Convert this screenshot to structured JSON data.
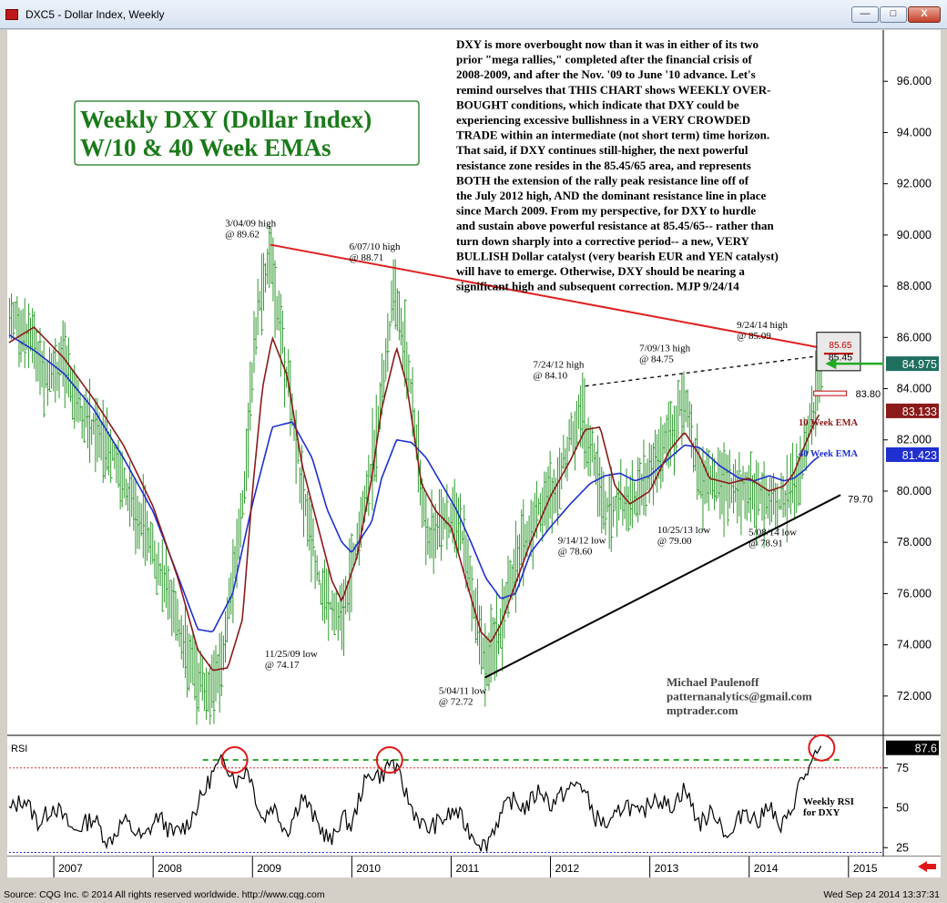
{
  "window": {
    "title": "DXC5 - Dollar Index, Weekly",
    "min_label": "—",
    "max_label": "□",
    "close_label": "X"
  },
  "status": {
    "left": "Source: CQG Inc. © 2014 All rights reserved worldwide. http://www.cqg.com",
    "right": "Wed Sep 24 2014 13:37:31"
  },
  "colors": {
    "bars": "#2f9a2f",
    "ema10": "#8b1a1a",
    "ema40": "#1f2fd0",
    "resistance_line": "#e02020",
    "support_line": "#000000",
    "rsi_line": "#000000",
    "rsi_overbought_line": "#33aa33",
    "title_box_text": "#1a7a1a"
  },
  "chart_data": [
    {
      "type": "bar",
      "title": "Weekly DXY (Dollar Index) W/10 & 40 Week EMAs",
      "title_lines": [
        "Weekly DXY (Dollar Index)",
        "W/10 & 40 Week EMAs"
      ],
      "ylim": [
        70.5,
        98.0
      ],
      "y_ticks": [
        "96.000",
        "94.000",
        "92.000",
        "90.000",
        "88.000",
        "86.000",
        "84.000",
        "82.000",
        "80.000",
        "78.000",
        "76.000",
        "74.000",
        "72.000"
      ],
      "xlim": [
        2006.55,
        2015.35
      ],
      "x_ticks": [
        "2007",
        "2008",
        "2009",
        "2010",
        "2011",
        "2012",
        "2013",
        "2014",
        "2015"
      ],
      "price_anchors": {
        "x": [
          2006.55,
          2006.75,
          2006.9,
          2007.1,
          2007.3,
          2007.6,
          2007.9,
          2008.2,
          2008.35,
          2008.55,
          2008.7,
          2008.9,
          2009.05,
          2009.18,
          2009.35,
          2009.5,
          2009.7,
          2009.9,
          2010.0,
          2010.2,
          2010.43,
          2010.6,
          2010.75,
          2010.9,
          2011.1,
          2011.34,
          2011.5,
          2011.6,
          2011.75,
          2011.9,
          2012.05,
          2012.3,
          2012.56,
          2012.7,
          2012.95,
          2013.15,
          2013.35,
          2013.53,
          2013.65,
          2013.82,
          2014.0,
          2014.1,
          2014.2,
          2014.35,
          2014.5,
          2014.65,
          2014.73
        ],
        "y": [
          86.8,
          86.2,
          84.6,
          85.0,
          83.0,
          81.4,
          78.6,
          75.6,
          73.5,
          72.1,
          73.4,
          79.5,
          87.0,
          89.2,
          84.5,
          80.0,
          76.0,
          74.8,
          77.0,
          81.0,
          87.8,
          84.0,
          78.0,
          79.0,
          78.5,
          73.2,
          74.5,
          76.8,
          78.0,
          79.5,
          80.0,
          83.2,
          79.2,
          79.5,
          80.2,
          81.8,
          83.4,
          80.2,
          80.4,
          80.1,
          80.0,
          79.8,
          79.7,
          79.5,
          80.6,
          83.3,
          84.8
        ]
      },
      "ema10": {
        "x": [
          2006.55,
          2006.8,
          2007.1,
          2007.4,
          2007.7,
          2008.0,
          2008.25,
          2008.45,
          2008.6,
          2008.75,
          2008.9,
          2009.0,
          2009.1,
          2009.2,
          2009.35,
          2009.5,
          2009.7,
          2009.8,
          2009.9,
          2010.05,
          2010.2,
          2010.3,
          2010.45,
          2010.55,
          2010.7,
          2010.85,
          2011.0,
          2011.15,
          2011.3,
          2011.4,
          2011.5,
          2011.65,
          2011.8,
          2012.0,
          2012.2,
          2012.35,
          2012.5,
          2012.65,
          2012.8,
          2013.0,
          2013.2,
          2013.35,
          2013.5,
          2013.6,
          2013.8,
          2014.0,
          2014.2,
          2014.35,
          2014.45,
          2014.55,
          2014.65,
          2014.72
        ],
        "y": [
          85.8,
          86.4,
          85.2,
          83.6,
          81.8,
          79.4,
          76.6,
          73.8,
          73.0,
          73.1,
          75.0,
          80.0,
          84.0,
          86.0,
          84.5,
          81.0,
          78.0,
          76.5,
          75.7,
          77.4,
          80.5,
          83.2,
          85.6,
          84.2,
          80.3,
          79.2,
          78.6,
          76.5,
          74.5,
          74.1,
          74.8,
          76.4,
          78.0,
          79.8,
          81.2,
          82.4,
          82.5,
          80.2,
          79.5,
          80.0,
          81.6,
          82.3,
          81.4,
          80.5,
          80.3,
          80.5,
          80.0,
          80.2,
          80.7,
          81.7,
          82.6,
          83.1
        ]
      },
      "ema40": {
        "x": [
          2006.55,
          2006.8,
          2007.1,
          2007.4,
          2007.7,
          2008.0,
          2008.2,
          2008.45,
          2008.6,
          2008.8,
          2009.0,
          2009.2,
          2009.4,
          2009.6,
          2009.75,
          2009.9,
          2010.0,
          2010.2,
          2010.3,
          2010.45,
          2010.6,
          2010.75,
          2010.9,
          2011.05,
          2011.2,
          2011.35,
          2011.5,
          2011.65,
          2011.8,
          2012.0,
          2012.2,
          2012.4,
          2012.55,
          2012.7,
          2012.85,
          2013.0,
          2013.2,
          2013.35,
          2013.5,
          2013.7,
          2013.9,
          2014.05,
          2014.2,
          2014.35,
          2014.45,
          2014.55,
          2014.65,
          2014.72
        ],
        "y": [
          86.1,
          85.5,
          84.6,
          83.2,
          81.3,
          79.2,
          77.2,
          74.6,
          74.5,
          76.0,
          79.5,
          82.5,
          82.7,
          81.3,
          79.3,
          78.0,
          77.6,
          78.8,
          80.5,
          82.0,
          81.9,
          81.3,
          80.3,
          79.3,
          78.0,
          76.6,
          75.8,
          76.0,
          77.6,
          78.6,
          79.5,
          80.3,
          80.6,
          80.7,
          80.4,
          80.6,
          81.3,
          81.8,
          81.7,
          81.0,
          80.5,
          80.4,
          80.6,
          80.4,
          80.5,
          80.8,
          81.2,
          81.4
        ]
      },
      "resistance_line": {
        "x1": 2009.18,
        "y1": 89.62,
        "x2": 2014.73,
        "y2": 85.55
      },
      "resistance_ext": {
        "x1": 2012.35,
        "y1": 84.1,
        "x2": 2014.73,
        "y2": 85.32
      },
      "support_line": {
        "x1": 2011.34,
        "y1": 72.72,
        "x2": 2014.92,
        "y2": 79.85
      },
      "levels": [
        {
          "label": "85.65",
          "y": 85.65
        },
        {
          "label": "85.45",
          "y": 85.25
        },
        {
          "label": "83.80",
          "y": 83.8
        },
        {
          "label": "79.70",
          "y": 79.7
        }
      ],
      "price_labels": [
        {
          "label": "84.975",
          "y": 84.975,
          "color": "#1f6f5f"
        },
        {
          "label": "83.133",
          "y": 83.133,
          "color": "#8b1a1a"
        },
        {
          "label": "81.423",
          "y": 81.423,
          "color": "#1f2fd0"
        }
      ],
      "ema_labels": [
        {
          "label": "10 Week EMA",
          "y": 82.7,
          "color": "#8b1a1a"
        },
        {
          "label": "40 Week EMA",
          "y": 81.5,
          "color": "#1f2fd0"
        }
      ],
      "annotations": [
        {
          "lines": [
            "3/04/09 high",
            "@ 89.62"
          ],
          "x": 2009.0,
          "y": 89.62,
          "anchor": "above"
        },
        {
          "lines": [
            "6/07/10 high",
            "@ 88.71"
          ],
          "x": 2010.25,
          "y": 88.71,
          "anchor": "above"
        },
        {
          "lines": [
            "11/25/09 low",
            "@ 74.17"
          ],
          "x": 2009.4,
          "y": 74.17,
          "anchor": "below"
        },
        {
          "lines": [
            "5/04/11 low",
            "@ 72.72"
          ],
          "x": 2011.15,
          "y": 72.72,
          "anchor": "below"
        },
        {
          "lines": [
            "7/24/12 high",
            "@ 84.10"
          ],
          "x": 2012.1,
          "y": 84.1,
          "anchor": "above"
        },
        {
          "lines": [
            "7/09/13 high",
            "@ 84.75"
          ],
          "x": 2013.17,
          "y": 84.75,
          "anchor": "above"
        },
        {
          "lines": [
            "9/24/14 high",
            "@ 85.09"
          ],
          "x": 2014.15,
          "y": 85.09,
          "anchor": "above2"
        },
        {
          "lines": [
            "9/14/12 low",
            "@ 78.60"
          ],
          "x": 2012.35,
          "y": 78.6,
          "anchor": "below"
        },
        {
          "lines": [
            "10/25/13 low",
            "@ 79.00"
          ],
          "x": 2013.35,
          "y": 79.0,
          "anchor": "below"
        },
        {
          "lines": [
            "5/08/14 low",
            "@ 78.91"
          ],
          "x": 2014.27,
          "y": 78.91,
          "anchor": "below"
        }
      ],
      "commentary": [
        "DXY is more overbought now than it was in either of its two",
        "prior \"mega rallies,\" completed after the financial crisis of",
        "2008-2009, and after the Nov. '09 to June '10 advance. Let's",
        "remind ourselves that THIS CHART shows WEEKLY OVER-",
        "BOUGHT conditions, which indicate that DXY could be",
        "experiencing excessive bullishness in a VERY CROWDED",
        "TRADE within an intermediate (not short term) time horizon.",
        "That said, if DXY continues still-higher, the next powerful",
        "resistance zone resides in the 85.45/65 area, and represents",
        "BOTH the extension of the rally peak resistance line off of",
        "the July 2012 high, AND the dominant resistance line in place",
        "since March 2009. From my perspective, for DXY to hurdle",
        "and sustain above powerful resistance at 85.45/65-- rather than",
        "turn down sharply into a corrective period-- a new, VERY",
        "BULLISH Dollar catalyst (very bearish EUR and YEN catalyst)",
        "will have to emerge. Otherwise, DXY should be nearing a",
        "significant high and subsequent correction. MJP 9/24/14"
      ],
      "credits": [
        "Michael Paulenoff",
        "patternanalytics@gmail.com",
        "mptrader.com"
      ]
    },
    {
      "type": "line",
      "title": "RSI",
      "ylim": [
        20,
        92
      ],
      "y_ticks": [
        "75",
        "50",
        "25"
      ],
      "current_label": "87.6",
      "overbought_level": 75,
      "extreme_level": 80,
      "oversold_level": 22,
      "series_anchors": {
        "x": [
          2006.55,
          2006.7,
          2006.85,
          2007.0,
          2007.2,
          2007.4,
          2007.55,
          2007.7,
          2007.9,
          2008.05,
          2008.2,
          2008.35,
          2008.5,
          2008.6,
          2008.72,
          2008.85,
          2008.95,
          2009.1,
          2009.2,
          2009.35,
          2009.5,
          2009.65,
          2009.8,
          2009.9,
          2010.0,
          2010.1,
          2010.2,
          2010.3,
          2010.4,
          2010.5,
          2010.6,
          2010.75,
          2010.9,
          2011.05,
          2011.2,
          2011.34,
          2011.45,
          2011.6,
          2011.75,
          2011.9,
          2012.0,
          2012.15,
          2012.3,
          2012.45,
          2012.6,
          2012.75,
          2012.9,
          2013.05,
          2013.2,
          2013.35,
          2013.5,
          2013.65,
          2013.8,
          2013.95,
          2014.1,
          2014.2,
          2014.3,
          2014.4,
          2014.5,
          2014.6,
          2014.7,
          2014.73
        ],
        "y": [
          48,
          56,
          40,
          52,
          35,
          44,
          28,
          42,
          30,
          45,
          33,
          40,
          58,
          72,
          80,
          66,
          76,
          42,
          52,
          35,
          58,
          40,
          28,
          45,
          38,
          62,
          72,
          70,
          80,
          66,
          50,
          36,
          42,
          48,
          34,
          26,
          40,
          55,
          50,
          62,
          52,
          60,
          66,
          44,
          38,
          54,
          44,
          58,
          50,
          62,
          40,
          48,
          30,
          50,
          40,
          55,
          36,
          44,
          64,
          74,
          84,
          87.6
        ]
      },
      "signature_markers": [
        {
          "x": 2008.82,
          "y": 80
        },
        {
          "x": 2010.38,
          "y": 80
        },
        {
          "x": 2014.73,
          "y": 87.6
        }
      ],
      "side_label": [
        "Weekly RSI",
        "for DXY"
      ]
    }
  ]
}
